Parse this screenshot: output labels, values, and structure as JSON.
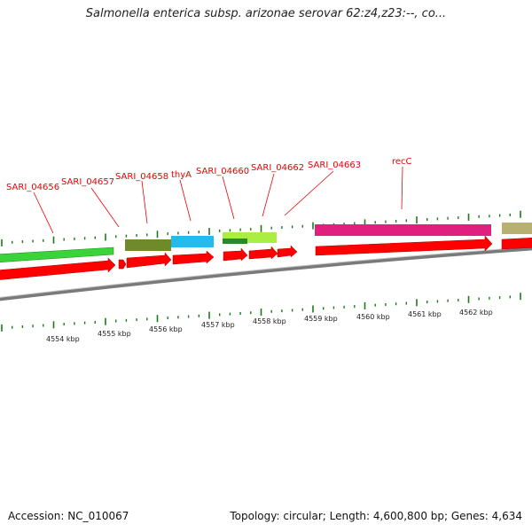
{
  "title": "Salmonella enterica subsp. arizonae serovar 62:z4,z23:--, co...",
  "footer": {
    "accession": "Accession: NC_010067",
    "topology": "Topology: circular; Length: 4,600,800 bp; Genes: 4,634"
  },
  "colors": {
    "gene_label": "#ee0000",
    "tick": "#1a7a1a",
    "backbone": "#808080",
    "cds": "#ff0000"
  },
  "gene_labels": [
    "SARI_04656",
    "SARI_04657",
    "SARI_04658",
    "thyA",
    "SARI_04660",
    "SARI_04662",
    "SARI_04663",
    "recC"
  ],
  "kbp_labels": [
    "4554 kbp",
    "4555 kbp",
    "4556 kbp",
    "4557 kbp",
    "4558 kbp",
    "4559 kbp",
    "4560 kbp",
    "4561 kbp",
    "4562 kbp"
  ],
  "feature_colors": {
    "green_long": "#3ad43a",
    "olive": "#6f8a2a",
    "cyan": "#22bbee",
    "lime": "#aaee44",
    "dark_green": "#2a8a2a",
    "magenta": "#e0207f",
    "khaki": "#b8b070"
  }
}
